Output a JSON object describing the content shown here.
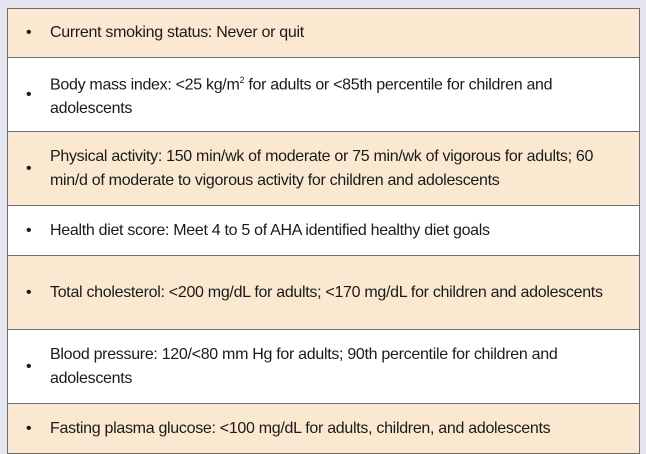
{
  "items": [
    {
      "text": "Current smoking status: Never or quit"
    },
    {
      "text": "Body mass index: <25 kg/m",
      "sup": "2",
      "rest": " for adults or <85th percentile for children and adolescents"
    },
    {
      "text": "Physical activity: 150 min/wk of moderate or 75 min/wk of vigorous for adults; 60 min/d of moderate to vigorous activity for children and adolescents"
    },
    {
      "text": "Health diet score: Meet 4 to 5 of AHA identified healthy diet goals"
    },
    {
      "text": "Total cholesterol: <200 mg/dL for adults; <170 mg/dL for children and adolescents"
    },
    {
      "text": "Blood pressure: 120/<80 mm Hg for adults; 90th percentile for children and adolescents"
    },
    {
      "text": "Fasting plasma glucose: <100 mg/dL for adults, children, and adolescents"
    }
  ],
  "bullet": "•",
  "colors": {
    "shaded": "#fbe8d0",
    "background": "#e6e6f2",
    "border": "#6e6e6e"
  }
}
